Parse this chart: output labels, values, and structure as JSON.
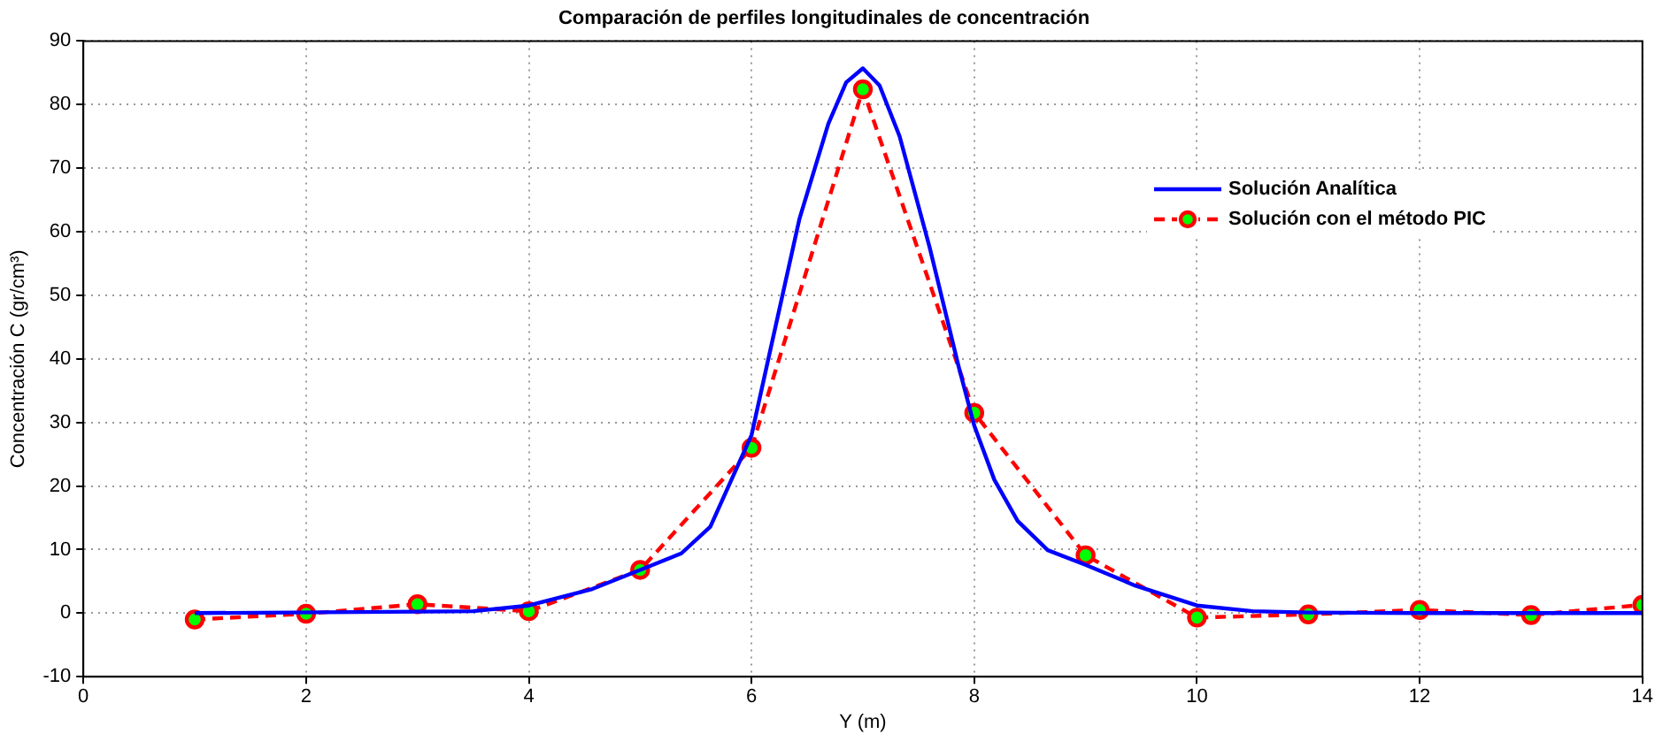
{
  "chart_data": {
    "type": "line",
    "title": "Comparación de perfiles longitudinales de concentración",
    "xlabel": "Y (m)",
    "ylabel": "Concentración C (gr/cm³)",
    "xlim": [
      0,
      14
    ],
    "xticks": [
      0,
      2,
      4,
      6,
      8,
      10,
      12,
      14
    ],
    "ylim": [
      -10,
      90
    ],
    "yticks": [
      -10,
      0,
      10,
      20,
      30,
      40,
      50,
      60,
      70,
      80,
      90
    ],
    "grid": true,
    "legend": "top right",
    "series": [
      {
        "name": "Solución Analítica",
        "color": "#0000ff",
        "line_style": "solid",
        "marker": "none",
        "x": [
          1,
          3.5,
          4,
          4.57,
          5,
          5.37,
          5.63,
          6,
          6.16,
          6.43,
          6.69,
          6.85,
          7,
          7.15,
          7.33,
          7.6,
          7.86,
          8,
          8.18,
          8.39,
          8.66,
          9,
          9.45,
          10,
          10.5,
          11,
          12,
          13,
          14
        ],
        "values": [
          0,
          0.3,
          1.2,
          3.8,
          6.8,
          9.4,
          13.6,
          28,
          40.7,
          62,
          77,
          83.5,
          85.7,
          83,
          75,
          57.5,
          38.8,
          29.5,
          21,
          14.5,
          9.9,
          7.6,
          4.3,
          1.2,
          0.3,
          0.1,
          0,
          0,
          0
        ]
      },
      {
        "name": "Solución con el método PIC",
        "color": "#ff0000",
        "line_style": "dashed",
        "marker": "circle",
        "x": [
          1,
          2,
          3,
          4,
          5,
          6,
          7,
          8,
          9,
          10,
          11,
          12,
          13,
          14
        ],
        "values": [
          -1,
          -0.1,
          1.4,
          0.3,
          6.8,
          26,
          82.4,
          31.5,
          9.1,
          -0.7,
          -0.2,
          0.5,
          -0.3,
          1.3
        ]
      }
    ]
  }
}
